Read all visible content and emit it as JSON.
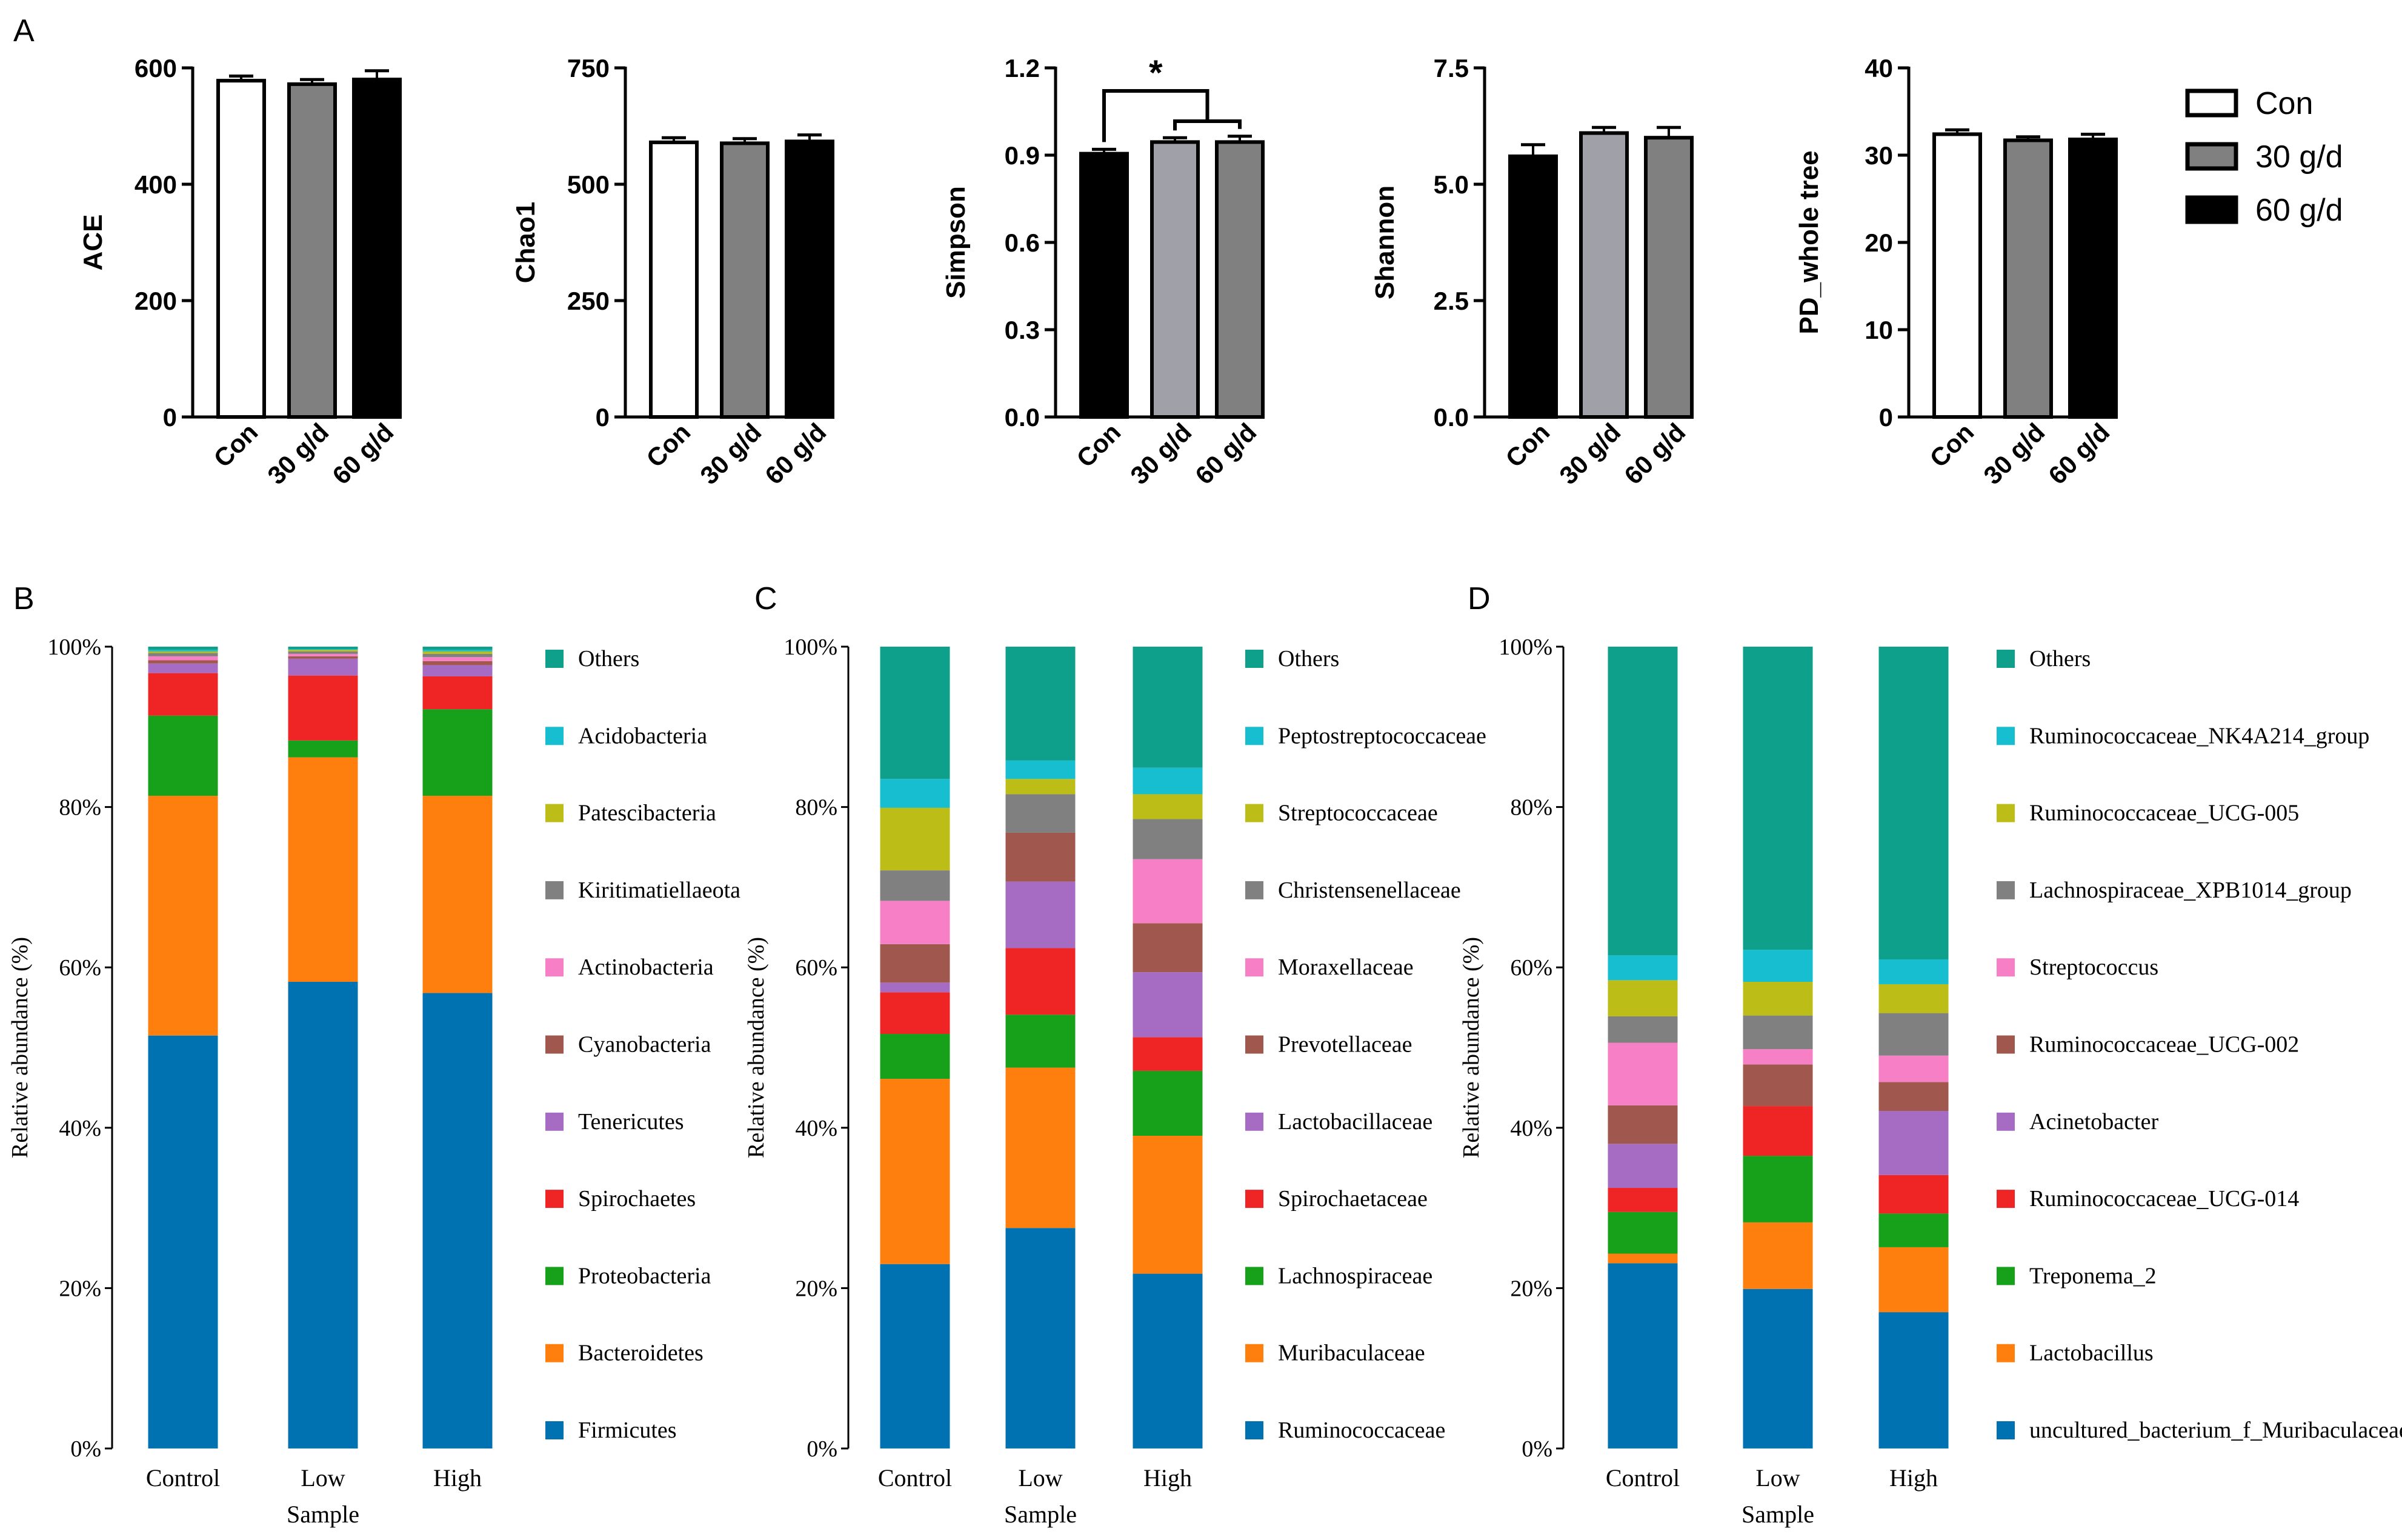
{
  "panel_labels": {
    "a": "A",
    "b": "B",
    "c": "C",
    "d": "D"
  },
  "legend_A": [
    {
      "label": "Con",
      "color": "#ffffff"
    },
    {
      "label": "30 g/d",
      "color": "#808080"
    },
    {
      "label": "60 g/d",
      "color": "#000000"
    }
  ],
  "chart_data": [
    {
      "type": "bar",
      "panel": "A",
      "ylabel": "ACE",
      "categories": [
        "Con",
        "30 g/d",
        "60 g/d"
      ],
      "values": [
        578,
        572,
        580
      ],
      "errors": [
        8,
        8,
        15
      ],
      "colors": [
        "#ffffff",
        "#808080",
        "#000000"
      ],
      "ylim": [
        0,
        600
      ],
      "yticks": [
        "0",
        "200",
        "400",
        "600"
      ]
    },
    {
      "type": "bar",
      "panel": "A",
      "ylabel": "Chao1",
      "categories": [
        "Con",
        "30 g/d",
        "60 g/d"
      ],
      "values": [
        590,
        588,
        592
      ],
      "errors": [
        10,
        10,
        14
      ],
      "colors": [
        "#ffffff",
        "#808080",
        "#000000"
      ],
      "ylim": [
        0,
        750
      ],
      "yticks": [
        "0",
        "250",
        "500",
        "750"
      ]
    },
    {
      "type": "bar",
      "panel": "A",
      "ylabel": "Simpson",
      "categories": [
        "Con",
        "30 g/d",
        "60 g/d"
      ],
      "values": [
        0.905,
        0.945,
        0.945
      ],
      "errors": [
        0.015,
        0.015,
        0.02
      ],
      "colors": [
        "#000000",
        "#a0a0a8",
        "#808080"
      ],
      "ylim": [
        0,
        1.2
      ],
      "yticks": [
        "0.0",
        "0.3",
        "0.6",
        "0.9",
        "1.2"
      ],
      "significance": "*"
    },
    {
      "type": "bar",
      "panel": "A",
      "ylabel": "Shannon",
      "categories": [
        "Con",
        "30 g/d",
        "60 g/d"
      ],
      "values": [
        5.6,
        6.1,
        6.0
      ],
      "errors": [
        0.25,
        0.12,
        0.22
      ],
      "colors": [
        "#000000",
        "#a0a0a8",
        "#808080"
      ],
      "ylim": [
        0,
        7.5
      ],
      "yticks": [
        "0.0",
        "2.5",
        "5.0",
        "7.5"
      ]
    },
    {
      "type": "bar",
      "panel": "A",
      "ylabel": "PD_whole tree",
      "categories": [
        "Con",
        "30 g/d",
        "60 g/d"
      ],
      "values": [
        32.4,
        31.7,
        31.8
      ],
      "errors": [
        0.5,
        0.4,
        0.6
      ],
      "colors": [
        "#ffffff",
        "#808080",
        "#000000"
      ],
      "ylim": [
        0,
        40
      ],
      "yticks": [
        "0",
        "10",
        "20",
        "30",
        "40"
      ]
    },
    {
      "type": "stacked-bar",
      "panel": "B",
      "categories": [
        "Control",
        "Low",
        "High"
      ],
      "xlabel": "Sample",
      "ylabel": "Relative abundance (%)",
      "ylim": [
        0,
        100
      ],
      "yticks": [
        "0%",
        "20%",
        "40%",
        "60%",
        "80%",
        "100%"
      ],
      "series": [
        {
          "name": "Firmicutes",
          "color": "#0072b2",
          "values": [
            51.5,
            58.2,
            56.8
          ]
        },
        {
          "name": "Bacteroidetes",
          "color": "#ff7f0e",
          "values": [
            29.9,
            28.0,
            24.6
          ]
        },
        {
          "name": "Proteobacteria",
          "color": "#17a11b",
          "values": [
            10.0,
            2.1,
            10.8
          ]
        },
        {
          "name": "Spirochaetes",
          "color": "#ef2424",
          "values": [
            5.3,
            8.1,
            4.1
          ]
        },
        {
          "name": "Tenericutes",
          "color": "#a66cc4",
          "values": [
            1.2,
            2.1,
            1.4
          ]
        },
        {
          "name": "Cyanobacteria",
          "color": "#a0574d",
          "values": [
            0.4,
            0.3,
            0.5
          ]
        },
        {
          "name": "Actinobacteria",
          "color": "#f77fc5",
          "values": [
            0.5,
            0.3,
            0.5
          ]
        },
        {
          "name": "Kiritimatiellaeota",
          "color": "#808080",
          "values": [
            0.4,
            0.3,
            0.4
          ]
        },
        {
          "name": "Patescibacteria",
          "color": "#bdbd18",
          "values": [
            0.2,
            0.2,
            0.3
          ]
        },
        {
          "name": "Acidobacteria",
          "color": "#16becf",
          "values": [
            0.2,
            0.1,
            0.2
          ]
        },
        {
          "name": "Others",
          "color": "#0ea08a",
          "values": [
            0.4,
            0.3,
            0.4
          ]
        }
      ]
    },
    {
      "type": "stacked-bar",
      "panel": "C",
      "categories": [
        "Control",
        "Low",
        "High"
      ],
      "xlabel": "Sample",
      "ylabel": "Relative abundance (%)",
      "ylim": [
        0,
        100
      ],
      "yticks": [
        "0%",
        "20%",
        "40%",
        "60%",
        "80%",
        "100%"
      ],
      "series": [
        {
          "name": "Ruminococcaceae",
          "color": "#0072b2",
          "values": [
            23.0,
            27.5,
            21.8
          ]
        },
        {
          "name": "Muribaculaceae",
          "color": "#ff7f0e",
          "values": [
            23.1,
            20.0,
            17.2
          ]
        },
        {
          "name": "Lachnospiraceae",
          "color": "#17a11b",
          "values": [
            5.6,
            6.6,
            8.1
          ]
        },
        {
          "name": "Spirochaetaceae",
          "color": "#ef2424",
          "values": [
            5.2,
            8.3,
            4.2
          ]
        },
        {
          "name": "Lactobacillaceae",
          "color": "#a66cc4",
          "values": [
            1.2,
            8.3,
            8.1
          ]
        },
        {
          "name": "Prevotellaceae",
          "color": "#a0574d",
          "values": [
            4.8,
            6.1,
            6.1
          ]
        },
        {
          "name": "Moraxellaceae",
          "color": "#f77fc5",
          "values": [
            5.4,
            0.0,
            8.0
          ]
        },
        {
          "name": "Christensenellaceae",
          "color": "#808080",
          "values": [
            3.8,
            4.8,
            5.0
          ]
        },
        {
          "name": "Streptococcaceae",
          "color": "#bdbd18",
          "values": [
            7.8,
            1.9,
            3.1
          ]
        },
        {
          "name": "Peptostreptococcaceae",
          "color": "#16becf",
          "values": [
            3.6,
            2.3,
            3.3
          ]
        },
        {
          "name": "Others",
          "color": "#0ea08a",
          "values": [
            16.5,
            14.2,
            15.1
          ]
        }
      ]
    },
    {
      "type": "stacked-bar",
      "panel": "D",
      "categories": [
        "Control",
        "Low",
        "High"
      ],
      "xlabel": "Sample",
      "ylabel": "Relative abundance (%)",
      "ylim": [
        0,
        100
      ],
      "yticks": [
        "0%",
        "20%",
        "40%",
        "60%",
        "80%",
        "100%"
      ],
      "series": [
        {
          "name": "uncultured_bacterium_f_Muribaculaceae",
          "color": "#0072b2",
          "values": [
            23.1,
            19.9,
            17.0
          ]
        },
        {
          "name": "Lactobacillus",
          "color": "#ff7f0e",
          "values": [
            1.2,
            8.3,
            8.1
          ]
        },
        {
          "name": "Treponema_2",
          "color": "#17a11b",
          "values": [
            5.2,
            8.3,
            4.2
          ]
        },
        {
          "name": "Ruminococcaceae_UCG-014",
          "color": "#ef2424",
          "values": [
            3.0,
            6.2,
            4.8
          ]
        },
        {
          "name": "Acinetobacter",
          "color": "#a66cc4",
          "values": [
            5.5,
            0.0,
            8.0
          ]
        },
        {
          "name": "Ruminococcaceae_UCG-002",
          "color": "#a0574d",
          "values": [
            4.8,
            5.2,
            3.6
          ]
        },
        {
          "name": "Streptococcus",
          "color": "#f77fc5",
          "values": [
            7.8,
            1.9,
            3.3
          ]
        },
        {
          "name": "Lachnospiraceae_XPB1014_group",
          "color": "#808080",
          "values": [
            3.3,
            4.2,
            5.3
          ]
        },
        {
          "name": "Ruminococcaceae_UCG-005",
          "color": "#bdbd18",
          "values": [
            4.5,
            4.2,
            3.6
          ]
        },
        {
          "name": "Ruminococcaceae_NK4A214_group",
          "color": "#16becf",
          "values": [
            3.1,
            4.0,
            3.1
          ]
        },
        {
          "name": "Others",
          "color": "#0ea08a",
          "values": [
            38.5,
            37.8,
            39.0
          ]
        }
      ]
    }
  ]
}
